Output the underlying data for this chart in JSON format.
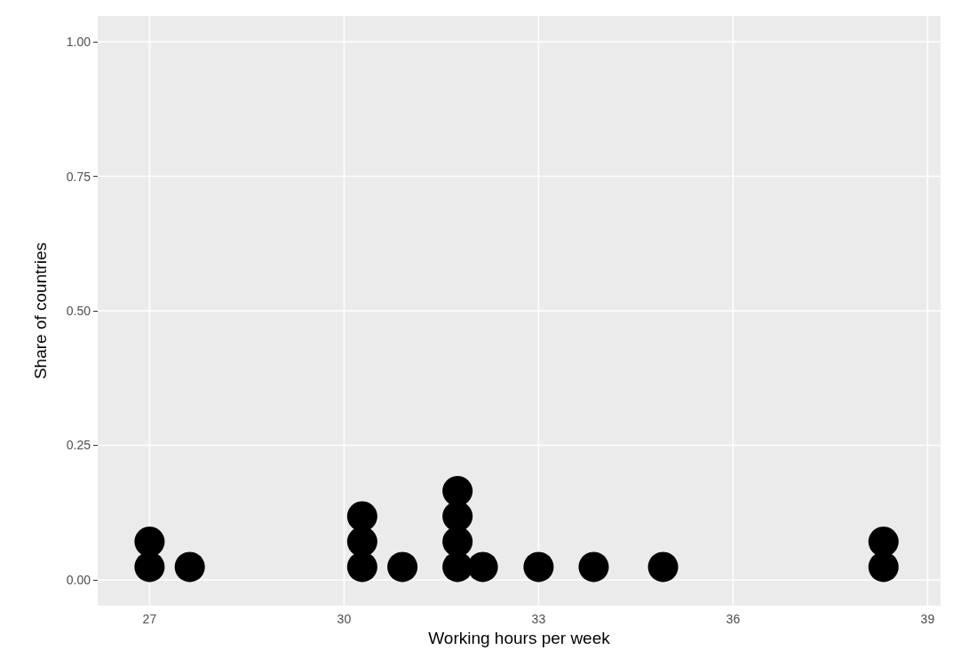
{
  "chart_data": {
    "type": "scatter",
    "xlabel": "Working hours per week",
    "ylabel": "Share of countries",
    "x": [
      27.0,
      27.0,
      27.62,
      30.28,
      30.28,
      30.28,
      30.9,
      31.75,
      31.75,
      31.75,
      31.75,
      32.14,
      33.0,
      33.85,
      34.92,
      38.32,
      38.32
    ],
    "series": [
      {
        "color": "#000000",
        "values": [
          0.024,
          0.071,
          0.024,
          0.024,
          0.071,
          0.118,
          0.024,
          0.024,
          0.071,
          0.118,
          0.165,
          0.024,
          0.024,
          0.024,
          0.024,
          0.024,
          0.071
        ]
      }
    ],
    "xlim": [
      26.2,
      39.2
    ],
    "xticks": [
      27,
      30,
      33,
      36,
      39
    ],
    "ylim": [
      -0.048,
      1.048
    ],
    "yticks": [
      {
        "value": 0,
        "label": "0.00"
      },
      {
        "value": 0.25,
        "label": "0.25"
      },
      {
        "value": 0.5,
        "label": "0.50"
      },
      {
        "value": 0.75,
        "label": "0.75"
      },
      {
        "value": 1,
        "label": "1.00"
      }
    ],
    "grid": true,
    "marker": "circle"
  }
}
